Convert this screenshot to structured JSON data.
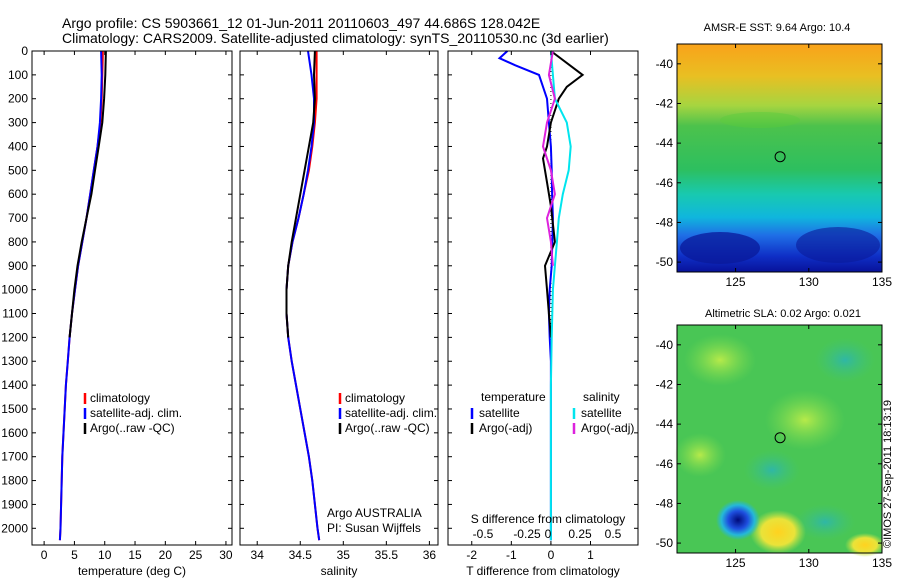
{
  "header": {
    "line1": "Argo profile: CS 5903661_12 01-Jun-2011 20110603_497 44.686S 128.042E",
    "line2": "Climatology: CARS2009. Satellite-adjusted climatology: synTS_20110530.nc (3d earlier)"
  },
  "footer_stamp": "©IMOS 27-Sep-2011 18:13:19",
  "colors": {
    "climatology": "#ff0000",
    "satellite_clim": "#0000ff",
    "argo": "#000000",
    "t_satellite": "#0000ff",
    "t_argo": "#000000",
    "s_satellite": "#00e5ee",
    "s_argo": "#dd22dd"
  },
  "chart_data": [
    {
      "type": "line",
      "panel": "temperature",
      "xlabel": "temperature (deg C)",
      "ylabel": "",
      "xlim": [
        -2,
        31
      ],
      "ylim": [
        2070,
        0
      ],
      "xticks": [
        0,
        5,
        10,
        15,
        20,
        25,
        30
      ],
      "xtick_labels": [
        "0",
        "5",
        "10",
        "15",
        "20",
        "25",
        "30"
      ],
      "yticks": [
        0,
        100,
        200,
        300,
        400,
        500,
        600,
        700,
        800,
        900,
        1000,
        1100,
        1200,
        1300,
        1400,
        1500,
        1600,
        1700,
        1800,
        1900,
        2000
      ],
      "ytick_labels": [
        "0",
        "100",
        "200",
        "300",
        "400",
        "500",
        "600",
        "700",
        "800",
        "900",
        "1000",
        "1100",
        "1200",
        "1300",
        "1400",
        "1500",
        "1600",
        "1700",
        "1800",
        "1900",
        "2000"
      ],
      "legend": [
        "climatology",
        "satellite-adj. clim.",
        "Argo(..raw -QC)"
      ],
      "series": [
        {
          "name": "climatology",
          "color": "#ff0000",
          "x": [
            9.7,
            9.6,
            9.5,
            9.3,
            8.8,
            8.2,
            7.6,
            7.0,
            6.3,
            5.6,
            5.1,
            4.6,
            4.2,
            3.9,
            3.6,
            3.4,
            3.2,
            3.0,
            2.9,
            2.8,
            2.7,
            2.6
          ],
          "y": [
            0,
            100,
            200,
            300,
            400,
            500,
            600,
            700,
            800,
            900,
            1000,
            1100,
            1200,
            1300,
            1400,
            1500,
            1600,
            1700,
            1800,
            1900,
            2000,
            2050
          ]
        },
        {
          "name": "satellite-adj. clim.",
          "color": "#0000ff",
          "x": [
            9.4,
            9.5,
            9.4,
            9.2,
            8.8,
            8.2,
            7.6,
            7.0,
            6.3,
            5.6,
            5.1,
            4.6,
            4.2,
            3.9,
            3.6,
            3.4,
            3.2,
            3.0,
            2.9,
            2.8,
            2.7,
            2.6
          ],
          "y": [
            0,
            100,
            200,
            300,
            400,
            500,
            600,
            700,
            800,
            900,
            1000,
            1100,
            1200,
            1300,
            1400,
            1500,
            1600,
            1700,
            1800,
            1900,
            2000,
            2050
          ]
        },
        {
          "name": "Argo(..raw -QC)",
          "color": "#000000",
          "x": [
            10.2,
            10.1,
            9.9,
            9.6,
            9.0,
            8.4,
            7.8,
            7.0,
            6.2,
            5.5,
            5.0,
            4.6,
            4.2
          ],
          "y": [
            0,
            100,
            200,
            300,
            400,
            500,
            600,
            700,
            800,
            900,
            1000,
            1100,
            1200
          ]
        }
      ]
    },
    {
      "type": "line",
      "panel": "salinity",
      "xlabel": "salinity",
      "xlim": [
        33.8,
        36.1
      ],
      "ylim": [
        2070,
        0
      ],
      "xticks": [
        34,
        34.5,
        35,
        35.5,
        36
      ],
      "xtick_labels": [
        "34",
        "34.5",
        "35",
        "35.5",
        "36"
      ],
      "legend": [
        "climatology",
        "satellite-adj. clim.",
        "Argo(..raw -QC)"
      ],
      "annotation": [
        "Argo AUSTRALIA",
        "PI: Susan Wijffels"
      ],
      "series": [
        {
          "name": "climatology",
          "color": "#ff0000",
          "x": [
            34.69,
            34.69,
            34.69,
            34.67,
            34.64,
            34.6,
            34.54,
            34.48,
            34.41,
            34.36,
            34.34,
            34.34,
            34.36,
            34.4,
            34.45,
            34.5,
            34.55,
            34.6,
            34.64,
            34.67,
            34.7,
            34.72
          ],
          "y": [
            0,
            100,
            200,
            300,
            400,
            500,
            600,
            700,
            800,
            900,
            1000,
            1100,
            1200,
            1300,
            1400,
            1500,
            1600,
            1700,
            1800,
            1900,
            2000,
            2050
          ]
        },
        {
          "name": "satellite-adj. clim.",
          "color": "#0000ff",
          "x": [
            34.59,
            34.63,
            34.66,
            34.66,
            34.63,
            34.59,
            34.54,
            34.48,
            34.41,
            34.36,
            34.34,
            34.34,
            34.36,
            34.4,
            34.45,
            34.5,
            34.55,
            34.6,
            34.64,
            34.67,
            34.7,
            34.72
          ],
          "y": [
            0,
            100,
            200,
            300,
            400,
            500,
            600,
            700,
            800,
            900,
            1000,
            1100,
            1200,
            1300,
            1400,
            1500,
            1600,
            1700,
            1800,
            1900,
            2000,
            2050
          ]
        },
        {
          "name": "Argo(..raw -QC)",
          "color": "#000000",
          "x": [
            34.67,
            34.66,
            34.67,
            34.65,
            34.6,
            34.55,
            34.5,
            34.45,
            34.4,
            34.36,
            34.34,
            34.34,
            34.36
          ],
          "y": [
            0,
            100,
            200,
            300,
            400,
            500,
            600,
            700,
            800,
            900,
            1000,
            1100,
            1200
          ]
        }
      ]
    },
    {
      "type": "line",
      "panel": "difference",
      "xlabel": "T difference from climatology",
      "xlabel_top": "S difference from climatology",
      "xlim": [
        -2.6,
        2.2
      ],
      "ylim": [
        2070,
        0
      ],
      "xticks": [
        -2,
        -1,
        0,
        1
      ],
      "xtick_labels": [
        "-2",
        "-1",
        "0",
        "1"
      ],
      "s_ticks": [
        -0.5,
        -0.25,
        0,
        0.25,
        0.5
      ],
      "s_tick_labels": [
        "-0.5",
        "-0.25",
        "0",
        "0.25",
        "0.5"
      ],
      "legend_titles": [
        "temperature",
        "salinity"
      ],
      "legend": [
        "satellite",
        "Argo(-adj)",
        "satellite",
        "Argo(-adj)"
      ],
      "series": [
        {
          "name": "satellite",
          "color": "#0000ff",
          "x": [
            -1.1,
            -1.3,
            -0.9,
            -0.3,
            -0.1,
            -0.05,
            0.0,
            0.02,
            0.03,
            0.05,
            0.02,
            -0.03,
            -0.05,
            -0.03,
            0.0,
            0.0,
            0.0,
            0.0,
            0.0,
            0.0,
            0.0,
            0.0
          ],
          "y": [
            0,
            30,
            60,
            100,
            200,
            300,
            400,
            500,
            600,
            700,
            900,
            1000,
            1100,
            1200,
            1300,
            1400,
            1500,
            1600,
            1700,
            1800,
            1900,
            2050
          ]
        },
        {
          "name": "Argo(-adj)",
          "color": "#000000",
          "x": [
            0.0,
            0.8,
            0.4,
            0.2,
            0.0,
            -0.1,
            -0.2,
            -0.1,
            0.0,
            0.1,
            -0.15,
            -0.1,
            -0.05,
            0.0
          ],
          "y": [
            0,
            100,
            150,
            200,
            300,
            400,
            450,
            550,
            650,
            800,
            900,
            1000,
            1100,
            1200
          ]
        },
        {
          "name": "satellite",
          "color": "#00e5ee",
          "x": [
            0.0,
            0.05,
            0.1,
            0.4,
            0.5,
            0.45,
            0.3,
            0.2,
            0.15,
            0.1,
            0.05,
            0.02,
            0.0,
            0.0,
            0.0,
            0.0
          ],
          "y": [
            0,
            100,
            200,
            300,
            400,
            500,
            600,
            700,
            800,
            900,
            1000,
            1200,
            1400,
            1600,
            1800,
            2050
          ]
        },
        {
          "name": "Argo(-adj)",
          "color": "#dd22dd",
          "x": [
            0.05,
            -0.05,
            0.1,
            -0.1,
            -0.2,
            0.0,
            0.1,
            -0.1,
            0.0,
            0.05
          ],
          "y": [
            0,
            100,
            200,
            300,
            400,
            500,
            600,
            700,
            800,
            900
          ]
        }
      ]
    },
    {
      "type": "heatmap",
      "panel": "sst_map",
      "title": "AMSR-E SST: 9.64 Argo: 10.4",
      "xlim": [
        121,
        135
      ],
      "ylim": [
        -50.5,
        -39
      ],
      "xticks": [
        125,
        130,
        135
      ],
      "xtick_labels": [
        "125",
        "130",
        "135"
      ],
      "yticks": [
        -40,
        -42,
        -44,
        -46,
        -48,
        -50
      ],
      "ytick_labels": [
        "-40",
        "-42",
        "-44",
        "-46",
        "-48",
        "-50"
      ],
      "marker": {
        "lon": 128.042,
        "lat": -44.686
      }
    },
    {
      "type": "heatmap",
      "panel": "sla_map",
      "title": "Altimetric SLA: 0.02 Argo: 0.021",
      "xlim": [
        121,
        135
      ],
      "ylim": [
        -50.5,
        -39
      ],
      "xticks": [
        125,
        130,
        135
      ],
      "xtick_labels": [
        "125",
        "130",
        "135"
      ],
      "yticks": [
        -40,
        -42,
        -44,
        -46,
        -48,
        -50
      ],
      "ytick_labels": [
        "-40",
        "-42",
        "-44",
        "-46",
        "-48",
        "-50"
      ],
      "marker": {
        "lon": 128.042,
        "lat": -44.686
      }
    }
  ]
}
